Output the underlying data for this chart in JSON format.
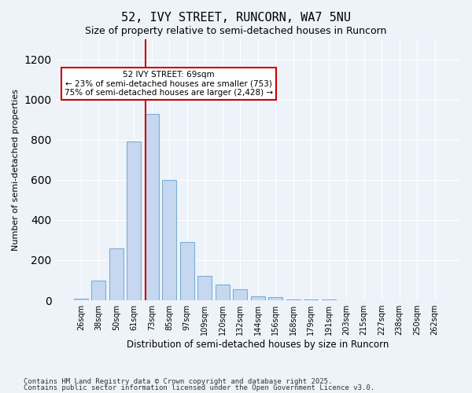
{
  "title1": "52, IVY STREET, RUNCORN, WA7 5NU",
  "title2": "Size of property relative to semi-detached houses in Runcorn",
  "xlabel": "Distribution of semi-detached houses by size in Runcorn",
  "ylabel": "Number of semi-detached properties",
  "bin_labels": [
    "26sqm",
    "38sqm",
    "50sqm",
    "61sqm",
    "73sqm",
    "85sqm",
    "97sqm",
    "109sqm",
    "120sqm",
    "132sqm",
    "144sqm",
    "156sqm",
    "168sqm",
    "179sqm",
    "191sqm",
    "203sqm",
    "215sqm",
    "227sqm",
    "238sqm",
    "250sqm",
    "262sqm"
  ],
  "bar_heights": [
    10,
    100,
    260,
    790,
    930,
    600,
    290,
    120,
    80,
    55,
    20,
    15,
    5,
    5,
    3,
    2,
    1,
    0,
    0,
    0,
    1
  ],
  "bar_color": "#c5d8f0",
  "bar_edge_color": "#7aafd4",
  "property_size_sqm": 69,
  "property_label": "52 IVY STREET: 69sqm",
  "pct_smaller": 23,
  "n_smaller": 753,
  "pct_larger": 75,
  "n_larger": 2428,
  "annotation_box_color": "#ffffff",
  "annotation_box_edge_color": "#cc0000",
  "vline_color": "#cc0000",
  "ylim": [
    0,
    1300
  ],
  "yticks": [
    0,
    200,
    400,
    600,
    800,
    1000,
    1200
  ],
  "footer1": "Contains HM Land Registry data © Crown copyright and database right 2025.",
  "footer2": "Contains public sector information licensed under the Open Government Licence v3.0.",
  "bg_color": "#eef3fa"
}
